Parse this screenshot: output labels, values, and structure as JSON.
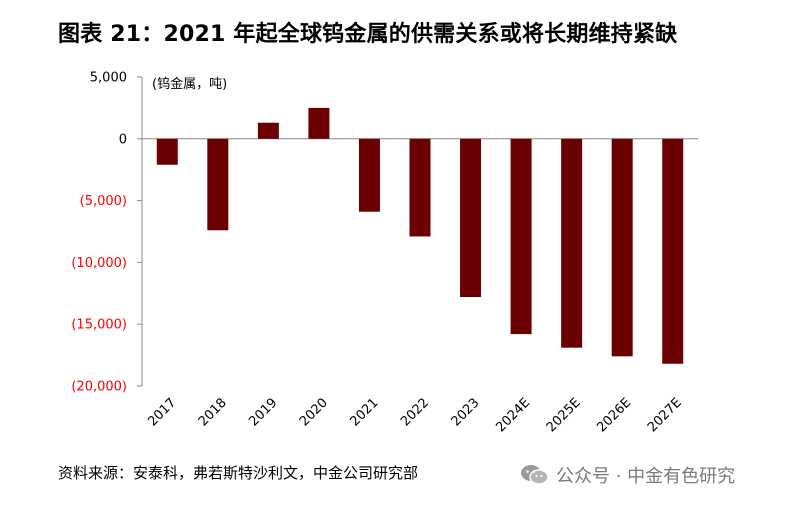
{
  "title": "图表 21：2021 年起全球钨金属的供需关系或将长期维持紧缺",
  "source": "资料来源：安泰科，弗若斯特沙利文，中金公司研究部",
  "watermark": {
    "text": "公众号 · 中金有色研究",
    "icon": "wechat-icon"
  },
  "chart_data": {
    "type": "bar",
    "unit_label": "(钨金属，吨)",
    "categories": [
      "2017",
      "2018",
      "2019",
      "2020",
      "2021",
      "2022",
      "2023",
      "2024E",
      "2025E",
      "2026E",
      "2027E"
    ],
    "values": [
      -2100,
      -7400,
      1300,
      2500,
      -5900,
      -7900,
      -12800,
      -15800,
      -16900,
      -17600,
      -18200
    ],
    "ylim": [
      -20000,
      5000
    ],
    "y_ticks": [
      {
        "value": 5000,
        "label": "5,000"
      },
      {
        "value": 0,
        "label": "0"
      },
      {
        "value": -5000,
        "label": "(5,000)"
      },
      {
        "value": -10000,
        "label": "(10,000)"
      },
      {
        "value": -15000,
        "label": "(15,000)"
      },
      {
        "value": -20000,
        "label": "(20,000)"
      }
    ],
    "bar_color": "#6b0000",
    "negative_tick_color": "#ff0000",
    "positive_tick_color": "#000000",
    "grid": false,
    "legend": "none"
  }
}
